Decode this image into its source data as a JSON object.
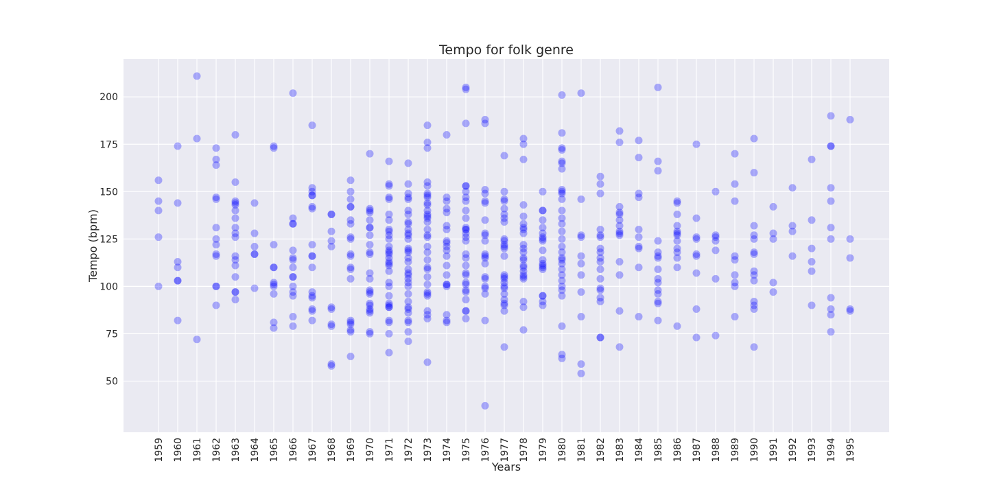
{
  "chart_data": {
    "type": "scatter",
    "title": "Tempo for folk genre",
    "xlabel": "Years",
    "ylabel": "Tempo (bpm)",
    "ylim": [
      23,
      220
    ],
    "yticks": [
      50,
      75,
      100,
      125,
      150,
      175,
      200
    ],
    "grid": true,
    "background": "#EAEAF2",
    "point_color": "#0000FF",
    "categories": [
      "1959",
      "1960",
      "1961",
      "1962",
      "1963",
      "1964",
      "1965",
      "1966",
      "1967",
      "1968",
      "1969",
      "1970",
      "1971",
      "1972",
      "1973",
      "1974",
      "1975",
      "1976",
      "1977",
      "1978",
      "1979",
      "1980",
      "1981",
      "1982",
      "1983",
      "1984",
      "1985",
      "1986",
      "1987",
      "1988",
      "1989",
      "1990",
      "1991",
      "1992",
      "1993",
      "1994",
      "1995"
    ],
    "points": [
      [
        "1959",
        [
          156,
          145,
          140,
          126,
          100
        ]
      ],
      [
        "1960",
        [
          174,
          144,
          113,
          110,
          103,
          103,
          82
        ]
      ],
      [
        "1961",
        [
          211,
          178,
          72
        ]
      ],
      [
        "1962",
        [
          173,
          167,
          164,
          147,
          146,
          131,
          125,
          122,
          117,
          116,
          100,
          100,
          90
        ]
      ],
      [
        "1963",
        [
          180,
          155,
          145,
          144,
          143,
          140,
          136,
          131,
          128,
          126,
          116,
          114,
          111,
          105,
          97,
          97,
          93
        ]
      ],
      [
        "1964",
        [
          144,
          128,
          121,
          117,
          117,
          99
        ]
      ],
      [
        "1965",
        [
          174,
          173,
          122,
          110,
          110,
          102,
          101,
          100,
          96,
          81,
          78
        ]
      ],
      [
        "1966",
        [
          202,
          136,
          133,
          133,
          119,
          115,
          114,
          110,
          105,
          105,
          100,
          97,
          95,
          84,
          79
        ]
      ],
      [
        "1967",
        [
          185,
          152,
          150,
          148,
          148,
          142,
          141,
          122,
          116,
          116,
          110,
          97,
          95,
          94,
          88,
          87,
          82
        ]
      ],
      [
        "1968",
        [
          138,
          138,
          129,
          124,
          121,
          89,
          88,
          80,
          79,
          59,
          58
        ]
      ],
      [
        "1969",
        [
          156,
          150,
          146,
          142,
          142,
          135,
          133,
          126,
          125,
          117,
          116,
          110,
          109,
          104,
          82,
          81,
          80,
          77,
          76,
          63
        ]
      ],
      [
        "1970",
        [
          170,
          141,
          140,
          139,
          135,
          131,
          131,
          127,
          122,
          118,
          117,
          107,
          104,
          98,
          97,
          96,
          91,
          90,
          88,
          87,
          86,
          76,
          75
        ]
      ],
      [
        "1971",
        [
          166,
          154,
          153,
          147,
          146,
          138,
          135,
          130,
          129,
          127,
          125,
          121,
          119,
          118,
          117,
          115,
          113,
          112,
          111,
          108,
          102,
          100,
          95,
          91,
          90,
          89,
          89,
          82,
          81,
          75,
          65
        ]
      ],
      [
        "1972",
        [
          165,
          154,
          149,
          147,
          146,
          140,
          138,
          134,
          133,
          130,
          128,
          127,
          125,
          120,
          119,
          118,
          115,
          113,
          109,
          107,
          106,
          104,
          102,
          100,
          96,
          92,
          89,
          88,
          86,
          82,
          81,
          76,
          71
        ]
      ],
      [
        "1973",
        [
          185,
          176,
          173,
          155,
          153,
          149,
          148,
          147,
          144,
          143,
          140,
          138,
          137,
          136,
          134,
          130,
          127,
          126,
          121,
          118,
          114,
          110,
          109,
          105,
          101,
          97,
          96,
          95,
          87,
          85,
          83,
          60
        ]
      ],
      [
        "1974",
        [
          180,
          147,
          145,
          141,
          139,
          132,
          130,
          124,
          123,
          121,
          119,
          116,
          111,
          106,
          101,
          101,
          100,
          85,
          82,
          81
        ]
      ],
      [
        "1975",
        [
          205,
          204,
          186,
          153,
          153,
          150,
          147,
          145,
          140,
          136,
          131,
          130,
          130,
          128,
          126,
          124,
          117,
          115,
          111,
          107,
          106,
          102,
          101,
          98,
          97,
          93,
          87,
          87,
          83
        ]
      ],
      [
        "1976",
        [
          188,
          186,
          151,
          149,
          145,
          144,
          135,
          128,
          127,
          124,
          117,
          116,
          115,
          112,
          105,
          104,
          100,
          99,
          96,
          82,
          37
        ]
      ],
      [
        "1977",
        [
          169,
          150,
          146,
          145,
          141,
          138,
          136,
          134,
          125,
          124,
          122,
          121,
          120,
          116,
          106,
          105,
          104,
          102,
          100,
          99,
          96,
          93,
          91,
          90,
          87,
          68
        ]
      ],
      [
        "1978",
        [
          178,
          175,
          167,
          143,
          137,
          133,
          131,
          130,
          128,
          122,
          120,
          118,
          115,
          114,
          111,
          110,
          108,
          106,
          105,
          104,
          92,
          89,
          77
        ]
      ],
      [
        "1979",
        [
          150,
          140,
          140,
          135,
          131,
          128,
          126,
          125,
          124,
          119,
          114,
          112,
          111,
          110,
          109,
          95,
          95,
          92,
          90
        ]
      ],
      [
        "1980",
        [
          201,
          181,
          173,
          172,
          166,
          165,
          162,
          151,
          150,
          149,
          146,
          140,
          136,
          133,
          129,
          125,
          121,
          118,
          115,
          114,
          112,
          109,
          106,
          103,
          100,
          98,
          95,
          79,
          64,
          62
        ]
      ],
      [
        "1981",
        [
          202,
          146,
          127,
          126,
          116,
          112,
          106,
          97,
          84,
          59,
          54
        ]
      ],
      [
        "1982",
        [
          158,
          154,
          149,
          130,
          127,
          126,
          120,
          118,
          115,
          113,
          109,
          104,
          99,
          98,
          94,
          92,
          73,
          73
        ]
      ],
      [
        "1983",
        [
          182,
          176,
          142,
          139,
          138,
          135,
          132,
          129,
          128,
          127,
          113,
          106,
          87,
          68
        ]
      ],
      [
        "1984",
        [
          177,
          168,
          149,
          147,
          130,
          126,
          121,
          120,
          110,
          84
        ]
      ],
      [
        "1985",
        [
          205,
          166,
          161,
          124,
          118,
          116,
          115,
          109,
          104,
          102,
          98,
          96,
          92,
          91,
          82
        ]
      ],
      [
        "1986",
        [
          145,
          144,
          138,
          132,
          129,
          128,
          127,
          124,
          120,
          118,
          115,
          110,
          79
        ]
      ],
      [
        "1987",
        [
          175,
          136,
          126,
          125,
          117,
          116,
          107,
          88,
          73
        ]
      ],
      [
        "1988",
        [
          150,
          127,
          126,
          124,
          119,
          104,
          74
        ]
      ],
      [
        "1989",
        [
          170,
          154,
          145,
          116,
          114,
          106,
          102,
          100,
          84
        ]
      ],
      [
        "1990",
        [
          178,
          160,
          132,
          127,
          125,
          118,
          117,
          108,
          106,
          103,
          92,
          90,
          88,
          68
        ]
      ],
      [
        "1991",
        [
          142,
          128,
          125,
          102,
          97
        ]
      ],
      [
        "1992",
        [
          152,
          132,
          129,
          116
        ]
      ],
      [
        "1993",
        [
          167,
          135,
          120,
          113,
          108,
          90
        ]
      ],
      [
        "1994",
        [
          190,
          174,
          174,
          152,
          145,
          131,
          125,
          94,
          88,
          85,
          76
        ]
      ],
      [
        "1995",
        [
          188,
          125,
          115,
          88,
          87
        ]
      ]
    ]
  }
}
